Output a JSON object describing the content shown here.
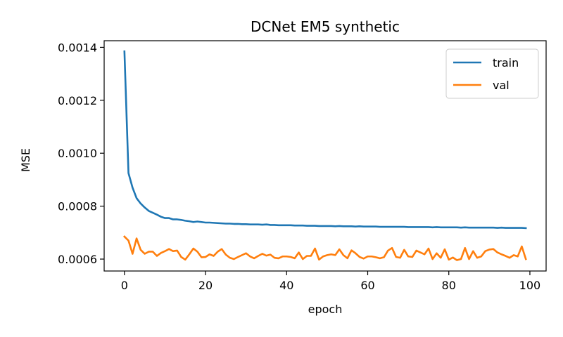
{
  "chart_data": {
    "type": "line",
    "title": "DCNet EM5 synthetic",
    "xlabel": "epoch",
    "ylabel": "MSE",
    "xlim": [
      -5,
      104
    ],
    "ylim": [
      0.000555,
      0.001425
    ],
    "xticks": [
      0,
      20,
      40,
      60,
      80,
      100
    ],
    "xtick_labels": [
      "0",
      "20",
      "40",
      "60",
      "80",
      "100"
    ],
    "yticks": [
      0.0006,
      0.0008,
      0.001,
      0.0012,
      0.0014
    ],
    "ytick_labels": [
      "0.0006",
      "0.0008",
      "0.0010",
      "0.0012",
      "0.0014"
    ],
    "grid": false,
    "legend_position": "top-right",
    "series": [
      {
        "name": "train",
        "color": "#1f77b4",
        "values": [
          0.001385,
          0.000925,
          0.00087,
          0.00083,
          0.00081,
          0.000795,
          0.000782,
          0.000775,
          0.000768,
          0.00076,
          0.000755,
          0.000755,
          0.00075,
          0.00075,
          0.000748,
          0.000745,
          0.000743,
          0.00074,
          0.000742,
          0.00074,
          0.000738,
          0.000738,
          0.000737,
          0.000736,
          0.000735,
          0.000734,
          0.000734,
          0.000733,
          0.000733,
          0.000732,
          0.000732,
          0.000731,
          0.000731,
          0.000731,
          0.00073,
          0.000731,
          0.000729,
          0.000729,
          0.000728,
          0.000728,
          0.000728,
          0.000728,
          0.000727,
          0.000727,
          0.000727,
          0.000726,
          0.000726,
          0.000726,
          0.000725,
          0.000725,
          0.000725,
          0.000725,
          0.000724,
          0.000725,
          0.000724,
          0.000724,
          0.000724,
          0.000723,
          0.000724,
          0.000723,
          0.000723,
          0.000723,
          0.000723,
          0.000722,
          0.000722,
          0.000722,
          0.000722,
          0.000722,
          0.000722,
          0.000722,
          0.000721,
          0.000721,
          0.000721,
          0.000721,
          0.000721,
          0.000721,
          0.00072,
          0.000721,
          0.00072,
          0.00072,
          0.00072,
          0.00072,
          0.00072,
          0.000719,
          0.00072,
          0.000719,
          0.000719,
          0.000719,
          0.000719,
          0.000719,
          0.000719,
          0.000719,
          0.000718,
          0.000719,
          0.000718,
          0.000718,
          0.000718,
          0.000718,
          0.000718,
          0.000717
        ]
      },
      {
        "name": "val",
        "color": "#ff7f0e",
        "values": [
          0.000685,
          0.00067,
          0.00062,
          0.000678,
          0.000635,
          0.00062,
          0.000628,
          0.000628,
          0.000612,
          0.000623,
          0.00063,
          0.000638,
          0.00063,
          0.000632,
          0.000608,
          0.000598,
          0.000618,
          0.00064,
          0.000628,
          0.000607,
          0.000608,
          0.000618,
          0.000612,
          0.000628,
          0.000638,
          0.000617,
          0.000605,
          0.0006,
          0.000608,
          0.000615,
          0.000622,
          0.00061,
          0.000603,
          0.000612,
          0.00062,
          0.000613,
          0.000617,
          0.000605,
          0.000603,
          0.00061,
          0.00061,
          0.000608,
          0.000603,
          0.000625,
          0.0006,
          0.000612,
          0.000612,
          0.00064,
          0.000598,
          0.00061,
          0.000615,
          0.000618,
          0.000615,
          0.000637,
          0.000615,
          0.000603,
          0.000633,
          0.000622,
          0.000608,
          0.000602,
          0.00061,
          0.00061,
          0.000607,
          0.000603,
          0.000607,
          0.000632,
          0.000642,
          0.000608,
          0.000605,
          0.000635,
          0.00061,
          0.000608,
          0.000632,
          0.000625,
          0.000618,
          0.00064,
          0.0006,
          0.000622,
          0.000605,
          0.000637,
          0.000598,
          0.000606,
          0.000596,
          0.0006,
          0.000642,
          0.0006,
          0.00063,
          0.000605,
          0.00061,
          0.00063,
          0.000636,
          0.000638,
          0.000625,
          0.000618,
          0.000612,
          0.000605,
          0.000615,
          0.00061,
          0.000648,
          0.0006
        ]
      }
    ]
  }
}
